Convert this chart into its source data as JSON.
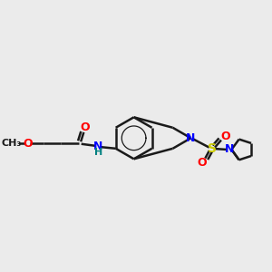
{
  "bg_color": "#ebebeb",
  "bond_color": "#1a1a1a",
  "N_color": "#0000ff",
  "O_color": "#ff0000",
  "S_color": "#cccc00",
  "NH_color": "#008080",
  "line_width": 1.8,
  "figsize": [
    3.0,
    3.0
  ],
  "dpi": 100,
  "xlim": [
    0,
    12
  ],
  "ylim": [
    2,
    9
  ]
}
